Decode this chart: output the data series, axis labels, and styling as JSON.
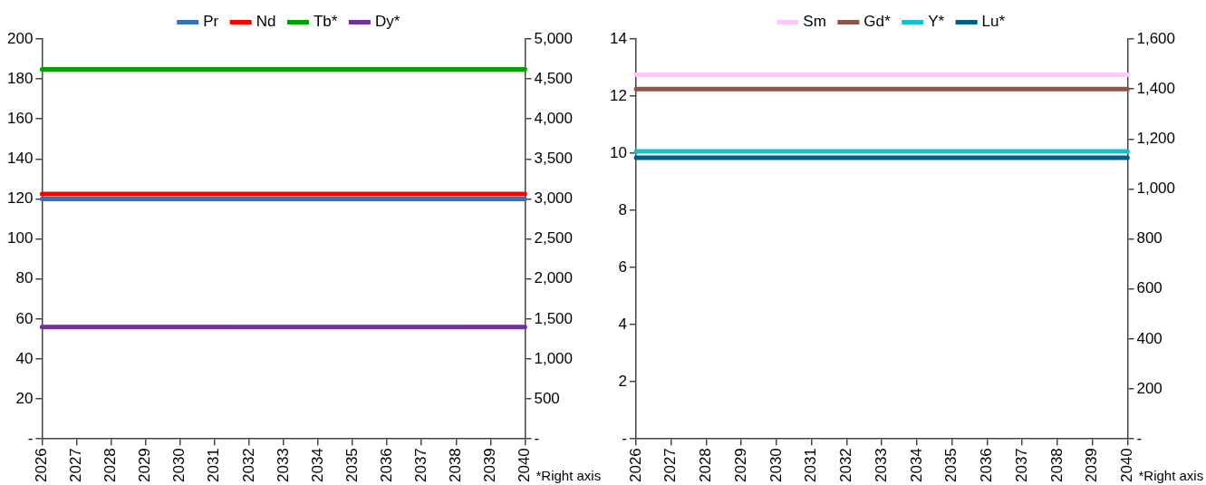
{
  "chart_data": [
    {
      "type": "line",
      "legend": "top",
      "grid": false,
      "marker": "none",
      "line_style": "solid",
      "categories": [
        "2026",
        "2027",
        "2028",
        "2029",
        "2030",
        "2031",
        "2032",
        "2033",
        "2034",
        "2035",
        "2036",
        "2037",
        "2038",
        "2039",
        "2040"
      ],
      "ylim": [
        0,
        200
      ],
      "yticks": [
        {
          "value": 0,
          "label": "-"
        },
        20,
        40,
        60,
        80,
        100,
        120,
        140,
        160,
        180,
        200
      ],
      "y2lim": [
        0,
        5000
      ],
      "y2ticks": [
        {
          "value": 0,
          "label": "-"
        },
        {
          "value": 500,
          "label": "500"
        },
        {
          "value": 1000,
          "label": "1,000"
        },
        {
          "value": 1500,
          "label": "1,500"
        },
        {
          "value": 2000,
          "label": "2,000"
        },
        {
          "value": 2500,
          "label": "2,500"
        },
        {
          "value": 3000,
          "label": "3,000"
        },
        {
          "value": 3500,
          "label": "3,500"
        },
        {
          "value": 4000,
          "label": "4,000"
        },
        {
          "value": 4500,
          "label": "4,500"
        },
        {
          "value": 5000,
          "label": "5,000"
        }
      ],
      "annotations": [
        "*Right axis"
      ],
      "series": [
        {
          "name": "Pr",
          "color": "#2e75b6",
          "values": [
            120,
            120,
            120,
            120,
            120,
            120,
            120,
            120,
            120,
            120,
            120,
            120,
            120,
            120,
            120
          ]
        },
        {
          "name": "Nd",
          "color": "#ff0000",
          "values": [
            122.5,
            122.5,
            122.5,
            122.5,
            122.5,
            122.5,
            122.5,
            122.5,
            122.5,
            122.5,
            122.5,
            122.5,
            122.5,
            122.5,
            122.5
          ]
        },
        {
          "name": "Tb*",
          "color": "#00a000",
          "axis": "y2",
          "values": [
            4620,
            4620,
            4620,
            4620,
            4620,
            4620,
            4620,
            4620,
            4620,
            4620,
            4620,
            4620,
            4620,
            4620,
            4620
          ]
        },
        {
          "name": "Dy*",
          "color": "#7030a0",
          "axis": "y2",
          "values": [
            1400,
            1400,
            1400,
            1400,
            1400,
            1400,
            1400,
            1400,
            1400,
            1400,
            1400,
            1400,
            1400,
            1400,
            1400
          ]
        }
      ]
    },
    {
      "type": "line",
      "legend": "top",
      "grid": false,
      "marker": "none",
      "line_style": "solid",
      "categories": [
        "2026",
        "2027",
        "2028",
        "2029",
        "2030",
        "2031",
        "2032",
        "2033",
        "2034",
        "2035",
        "2036",
        "2037",
        "2038",
        "2039",
        "2040"
      ],
      "ylim": [
        0,
        14
      ],
      "yticks": [
        {
          "value": 0,
          "label": "-"
        },
        2,
        4,
        6,
        8,
        10,
        12,
        14
      ],
      "y2lim": [
        0,
        1600
      ],
      "y2ticks": [
        {
          "value": 0,
          "label": "-"
        },
        {
          "value": 200,
          "label": "200"
        },
        {
          "value": 400,
          "label": "400"
        },
        {
          "value": 600,
          "label": "600"
        },
        {
          "value": 800,
          "label": "800"
        },
        {
          "value": 1000,
          "label": "1,000"
        },
        {
          "value": 1200,
          "label": "1,200"
        },
        {
          "value": 1400,
          "label": "1,400"
        },
        {
          "value": 1600,
          "label": "1,600"
        }
      ],
      "annotations": [
        "*Right axis"
      ],
      "series": [
        {
          "name": "Sm",
          "color": "#ffc8f8",
          "values": [
            12.75,
            12.75,
            12.75,
            12.75,
            12.75,
            12.75,
            12.75,
            12.75,
            12.75,
            12.75,
            12.75,
            12.75,
            12.75,
            12.75,
            12.75
          ]
        },
        {
          "name": "Gd*",
          "color": "#8c564b",
          "axis": "y2",
          "values": [
            1400,
            1400,
            1400,
            1400,
            1400,
            1400,
            1400,
            1400,
            1400,
            1400,
            1400,
            1400,
            1400,
            1400,
            1400
          ]
        },
        {
          "name": "Y*",
          "color": "#17becf",
          "axis": "y2",
          "values": [
            1150,
            1150,
            1150,
            1150,
            1150,
            1150,
            1150,
            1150,
            1150,
            1150,
            1150,
            1150,
            1150,
            1150,
            1150
          ]
        },
        {
          "name": "Lu*",
          "color": "#005f8a",
          "axis": "y2",
          "values": [
            1125,
            1125,
            1125,
            1125,
            1125,
            1125,
            1125,
            1125,
            1125,
            1125,
            1125,
            1125,
            1125,
            1125,
            1125
          ]
        }
      ]
    }
  ]
}
